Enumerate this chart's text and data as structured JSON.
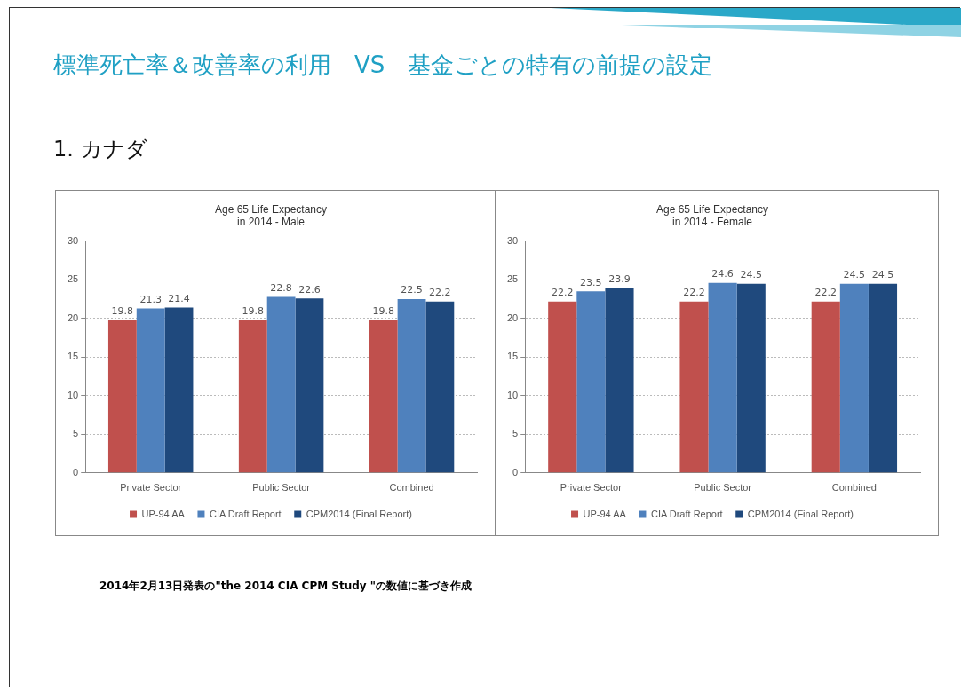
{
  "chart_data": [
    {
      "type": "other",
      "title": "標準死亡率＆改善率の利用　VS　基金ごとの特有の前提の設定",
      "subtitle": "1.  カナダ",
      "annotations": [
        "2014年2月13日発表の\"the 2014 CIA CPM Study \"の数値に基づき作成"
      ]
    },
    {
      "type": "bar",
      "title": "Age 65 Life Expectancy\nin 2014 - Male",
      "categories": [
        "Private Sector",
        "Public Sector",
        "Combined"
      ],
      "series": [
        {
          "name": "UP-94 AA",
          "color": "#c0504d",
          "values": [
            19.8,
            19.8,
            19.8
          ]
        },
        {
          "name": "CIA Draft Report",
          "color": "#4f81bd",
          "values": [
            21.3,
            22.8,
            22.5
          ]
        },
        {
          "name": "CPM2014 (Final Report)",
          "color": "#1f497d",
          "values": [
            21.4,
            22.6,
            22.2
          ]
        }
      ],
      "ylim": [
        0,
        30
      ],
      "yticks": [
        0,
        5,
        10,
        15,
        20,
        25,
        30
      ],
      "grid": "y",
      "legend": "bottom",
      "data_labels": true
    },
    {
      "type": "bar",
      "title": "Age 65 Life Expectancy\nin 2014 - Female",
      "categories": [
        "Private Sector",
        "Public Sector",
        "Combined"
      ],
      "series": [
        {
          "name": "UP-94 AA",
          "color": "#c0504d",
          "values": [
            22.2,
            22.2,
            22.2
          ]
        },
        {
          "name": "CIA Draft Report",
          "color": "#4f81bd",
          "values": [
            23.5,
            24.6,
            24.5
          ]
        },
        {
          "name": "CPM2014 (Final Report)",
          "color": "#1f497d",
          "values": [
            23.9,
            24.5,
            24.5
          ]
        }
      ],
      "ylim": [
        0,
        30
      ],
      "yticks": [
        0,
        5,
        10,
        15,
        20,
        25,
        30
      ],
      "grid": "y",
      "legend": "bottom",
      "data_labels": true
    }
  ]
}
